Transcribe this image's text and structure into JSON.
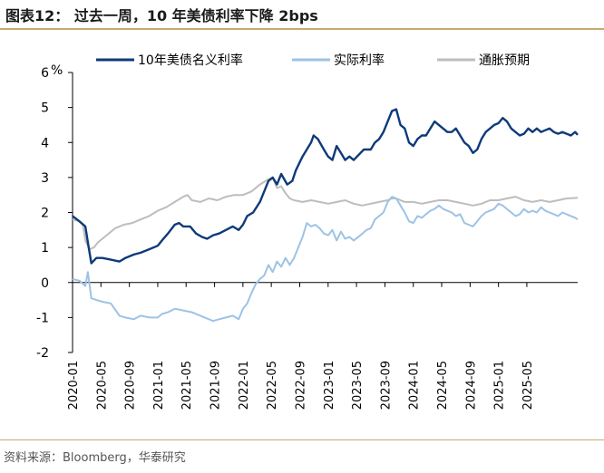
{
  "title": "图表12： 过去一周，10 年美债利率下降 2bps",
  "source": "资料来源：Bloomberg，华泰研究",
  "colors": {
    "nominal": "#0e3a78",
    "real": "#9cc3e6",
    "breakeven": "#bdbdbd",
    "rule": "#c9a96e"
  },
  "chart_data": {
    "type": "line",
    "title": "",
    "ylabel": "%",
    "ylim": [
      -2,
      6
    ],
    "yticks": [
      -2,
      -1,
      0,
      1,
      2,
      3,
      4,
      5,
      6
    ],
    "xlim": [
      2020.0,
      2025.93
    ],
    "xticks": [
      {
        "t": 2020.0,
        "label": "2020-01"
      },
      {
        "t": 2020.333,
        "label": "2020-05"
      },
      {
        "t": 2020.667,
        "label": "2020-09"
      },
      {
        "t": 2021.0,
        "label": "2021-01"
      },
      {
        "t": 2021.333,
        "label": "2021-05"
      },
      {
        "t": 2021.667,
        "label": "2021-09"
      },
      {
        "t": 2022.0,
        "label": "2022-01"
      },
      {
        "t": 2022.333,
        "label": "2022-05"
      },
      {
        "t": 2022.667,
        "label": "2022-09"
      },
      {
        "t": 2023.0,
        "label": "2023-01"
      },
      {
        "t": 2023.333,
        "label": "2023-05"
      },
      {
        "t": 2023.667,
        "label": "2023-09"
      },
      {
        "t": 2024.0,
        "label": "2024-01"
      },
      {
        "t": 2024.333,
        "label": "2024-05"
      },
      {
        "t": 2024.667,
        "label": "2024-09"
      },
      {
        "t": 2025.0,
        "label": "2025-01"
      },
      {
        "t": 2025.333,
        "label": "2025-05"
      }
    ],
    "series": [
      {
        "name": "10年美债名义利率",
        "color": "#0e3a78",
        "x": [
          2020.0,
          2020.08,
          2020.15,
          2020.19,
          2020.22,
          2020.28,
          2020.35,
          2020.45,
          2020.55,
          2020.62,
          2020.72,
          2020.8,
          2020.9,
          2021.0,
          2021.05,
          2021.12,
          2021.2,
          2021.25,
          2021.3,
          2021.38,
          2021.45,
          2021.52,
          2021.58,
          2021.65,
          2021.72,
          2021.8,
          2021.88,
          2021.95,
          2022.0,
          2022.05,
          2022.12,
          2022.2,
          2022.25,
          2022.3,
          2022.35,
          2022.4,
          2022.45,
          2022.52,
          2022.58,
          2022.62,
          2022.7,
          2022.75,
          2022.8,
          2022.83,
          2022.88,
          2022.95,
          2023.0,
          2023.05,
          2023.1,
          2023.15,
          2023.2,
          2023.25,
          2023.3,
          2023.38,
          2023.42,
          2023.5,
          2023.55,
          2023.6,
          2023.65,
          2023.7,
          2023.75,
          2023.8,
          2023.85,
          2023.9,
          2023.95,
          2024.0,
          2024.05,
          2024.1,
          2024.15,
          2024.2,
          2024.25,
          2024.3,
          2024.35,
          2024.4,
          2024.45,
          2024.5,
          2024.55,
          2024.6,
          2024.65,
          2024.7,
          2024.75,
          2024.8,
          2024.85,
          2024.9,
          2024.95,
          2025.0,
          2025.05,
          2025.1,
          2025.15,
          2025.2,
          2025.25,
          2025.3,
          2025.35,
          2025.4,
          2025.45,
          2025.5,
          2025.55,
          2025.6,
          2025.65,
          2025.7,
          2025.75,
          2025.8,
          2025.85,
          2025.9,
          2025.93
        ],
        "y": [
          1.9,
          1.75,
          1.6,
          1.0,
          0.55,
          0.7,
          0.7,
          0.65,
          0.6,
          0.7,
          0.8,
          0.85,
          0.95,
          1.05,
          1.2,
          1.4,
          1.65,
          1.7,
          1.6,
          1.6,
          1.4,
          1.3,
          1.25,
          1.35,
          1.4,
          1.5,
          1.6,
          1.5,
          1.65,
          1.9,
          2.0,
          2.3,
          2.6,
          2.9,
          3.0,
          2.8,
          3.1,
          2.8,
          2.9,
          3.2,
          3.6,
          3.8,
          4.0,
          4.2,
          4.1,
          3.8,
          3.6,
          3.5,
          3.9,
          3.7,
          3.5,
          3.6,
          3.5,
          3.7,
          3.8,
          3.8,
          4.0,
          4.1,
          4.3,
          4.6,
          4.9,
          4.95,
          4.5,
          4.4,
          4.0,
          3.9,
          4.1,
          4.2,
          4.2,
          4.4,
          4.6,
          4.5,
          4.4,
          4.3,
          4.3,
          4.4,
          4.2,
          4.0,
          3.9,
          3.7,
          3.8,
          4.1,
          4.3,
          4.4,
          4.5,
          4.55,
          4.7,
          4.6,
          4.4,
          4.3,
          4.2,
          4.25,
          4.4,
          4.3,
          4.4,
          4.3,
          4.35,
          4.4,
          4.3,
          4.25,
          4.3,
          4.25,
          4.2,
          4.3,
          4.22
        ]
      },
      {
        "name": "实际利率",
        "color": "#9cc3e6",
        "x": [
          2020.0,
          2020.08,
          2020.15,
          2020.18,
          2020.22,
          2020.28,
          2020.35,
          2020.45,
          2020.55,
          2020.62,
          2020.72,
          2020.8,
          2020.9,
          2021.0,
          2021.05,
          2021.12,
          2021.2,
          2021.3,
          2021.4,
          2021.5,
          2021.6,
          2021.65,
          2021.72,
          2021.8,
          2021.88,
          2021.95,
          2022.0,
          2022.05,
          2022.1,
          2022.15,
          2022.2,
          2022.25,
          2022.3,
          2022.35,
          2022.4,
          2022.45,
          2022.5,
          2022.55,
          2022.6,
          2022.65,
          2022.7,
          2022.75,
          2022.8,
          2022.85,
          2022.9,
          2022.95,
          2023.0,
          2023.05,
          2023.1,
          2023.15,
          2023.2,
          2023.25,
          2023.3,
          2023.38,
          2023.45,
          2023.5,
          2023.55,
          2023.6,
          2023.65,
          2023.7,
          2023.75,
          2023.8,
          2023.85,
          2023.9,
          2023.95,
          2024.0,
          2024.05,
          2024.1,
          2024.15,
          2024.2,
          2024.25,
          2024.3,
          2024.35,
          2024.4,
          2024.45,
          2024.5,
          2024.55,
          2024.6,
          2024.65,
          2024.7,
          2024.75,
          2024.8,
          2024.85,
          2024.9,
          2024.95,
          2025.0,
          2025.05,
          2025.1,
          2025.15,
          2025.2,
          2025.25,
          2025.3,
          2025.35,
          2025.4,
          2025.45,
          2025.5,
          2025.55,
          2025.6,
          2025.65,
          2025.7,
          2025.75,
          2025.8,
          2025.85,
          2025.9,
          2025.93
        ],
        "y": [
          0.1,
          0.05,
          -0.1,
          0.3,
          -0.45,
          -0.5,
          -0.55,
          -0.6,
          -0.95,
          -1.0,
          -1.05,
          -0.95,
          -1.0,
          -1.0,
          -0.9,
          -0.85,
          -0.75,
          -0.8,
          -0.85,
          -0.95,
          -1.05,
          -1.1,
          -1.05,
          -1.0,
          -0.95,
          -1.05,
          -0.75,
          -0.6,
          -0.3,
          -0.05,
          0.1,
          0.2,
          0.5,
          0.3,
          0.6,
          0.45,
          0.7,
          0.5,
          0.7,
          1.0,
          1.3,
          1.7,
          1.6,
          1.65,
          1.55,
          1.4,
          1.35,
          1.5,
          1.2,
          1.45,
          1.25,
          1.3,
          1.2,
          1.35,
          1.5,
          1.55,
          1.8,
          1.9,
          2.0,
          2.3,
          2.45,
          2.4,
          2.2,
          2.0,
          1.75,
          1.7,
          1.9,
          1.85,
          1.95,
          2.05,
          2.1,
          2.2,
          2.1,
          2.05,
          2.0,
          1.9,
          1.95,
          1.7,
          1.65,
          1.6,
          1.75,
          1.9,
          2.0,
          2.05,
          2.1,
          2.25,
          2.2,
          2.1,
          2.0,
          1.9,
          1.95,
          2.1,
          2.0,
          2.05,
          2.0,
          2.15,
          2.05,
          2.0,
          1.95,
          1.9,
          2.0,
          1.95,
          1.9,
          1.85,
          1.8
        ]
      },
      {
        "name": "通胀预期",
        "color": "#bdbdbd",
        "x": [
          2020.0,
          2020.08,
          2020.12,
          2020.15,
          2020.2,
          2020.25,
          2020.3,
          2020.4,
          2020.5,
          2020.6,
          2020.7,
          2020.8,
          2020.9,
          2021.0,
          2021.1,
          2021.2,
          2021.3,
          2021.35,
          2021.4,
          2021.5,
          2021.6,
          2021.7,
          2021.8,
          2021.9,
          2022.0,
          2022.1,
          2022.2,
          2022.3,
          2022.35,
          2022.4,
          2022.45,
          2022.5,
          2022.55,
          2022.6,
          2022.7,
          2022.8,
          2022.9,
          2023.0,
          2023.1,
          2023.2,
          2023.3,
          2023.4,
          2023.5,
          2023.6,
          2023.7,
          2023.75,
          2023.8,
          2023.9,
          2024.0,
          2024.1,
          2024.2,
          2024.3,
          2024.4,
          2024.5,
          2024.6,
          2024.7,
          2024.8,
          2024.9,
          2025.0,
          2025.1,
          2025.2,
          2025.3,
          2025.4,
          2025.5,
          2025.6,
          2025.7,
          2025.8,
          2025.93
        ],
        "y": [
          1.8,
          1.75,
          1.65,
          1.2,
          0.95,
          1.0,
          1.15,
          1.35,
          1.55,
          1.65,
          1.7,
          1.8,
          1.9,
          2.05,
          2.15,
          2.3,
          2.45,
          2.5,
          2.35,
          2.3,
          2.4,
          2.35,
          2.45,
          2.5,
          2.5,
          2.6,
          2.8,
          2.95,
          3.0,
          2.7,
          2.75,
          2.55,
          2.4,
          2.35,
          2.3,
          2.35,
          2.3,
          2.25,
          2.3,
          2.35,
          2.25,
          2.2,
          2.25,
          2.3,
          2.35,
          2.4,
          2.4,
          2.3,
          2.3,
          2.25,
          2.3,
          2.35,
          2.35,
          2.3,
          2.25,
          2.2,
          2.25,
          2.35,
          2.35,
          2.4,
          2.45,
          2.35,
          2.3,
          2.35,
          2.3,
          2.35,
          2.4,
          2.42
        ]
      }
    ]
  }
}
